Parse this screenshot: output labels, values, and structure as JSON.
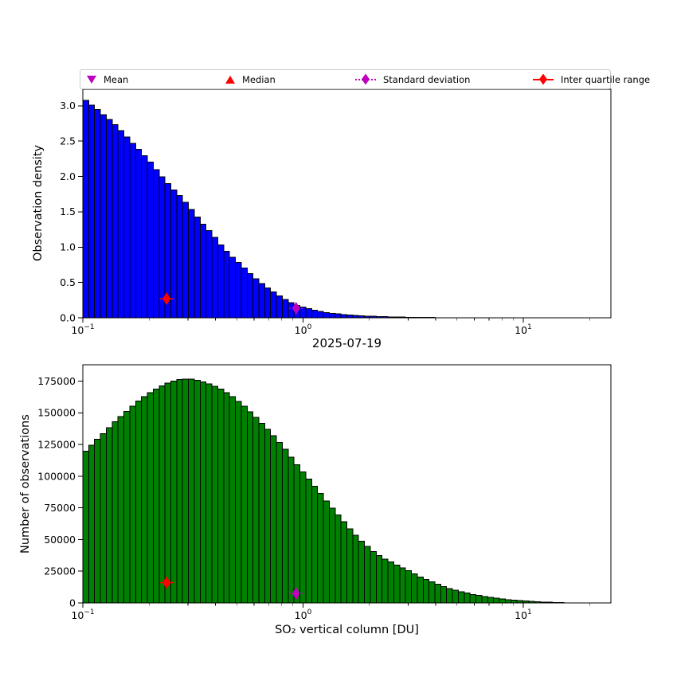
{
  "figure": {
    "background": "#ffffff",
    "date_title": "2025-07-19"
  },
  "legend": {
    "border_color": "#cccccc",
    "items": [
      {
        "label": "Mean",
        "marker": "triangle-down",
        "color": "#bf00bf"
      },
      {
        "label": "Median",
        "marker": "triangle-up",
        "color": "#ff0000"
      },
      {
        "label": "Standard deviation",
        "marker": "diamond-dotted-errorbar",
        "color": "#bf00bf"
      },
      {
        "label": "Inter quartile range",
        "marker": "diamond-solid-errorbar",
        "color": "#ff0000"
      }
    ]
  },
  "chart_data": [
    {
      "type": "bar",
      "name": "observation-density-histogram",
      "ylabel": "Observation density",
      "xlabel": "",
      "xscale": "log",
      "xlim": [
        0.1,
        25
      ],
      "ylim": [
        0,
        3.235
      ],
      "n_bins": 90,
      "grid": false,
      "bar_color": "#0000ff",
      "bar_edge_color": "#000000",
      "yticks": [
        {
          "v": 0.0,
          "label": "0.0"
        },
        {
          "v": 0.5,
          "label": "0.5"
        },
        {
          "v": 1.0,
          "label": "1.0"
        },
        {
          "v": 1.5,
          "label": "1.5"
        },
        {
          "v": 2.0,
          "label": "2.0"
        },
        {
          "v": 2.5,
          "label": "2.5"
        },
        {
          "v": 3.0,
          "label": "3.0"
        }
      ],
      "xticks": [
        {
          "v": 0.1,
          "mantissa": "10",
          "exponent": "−1"
        },
        {
          "v": 1,
          "mantissa": "10",
          "exponent": "0"
        },
        {
          "v": 10,
          "mantissa": "10",
          "exponent": "1"
        }
      ],
      "envelope": {
        "x": [
          0.1,
          0.113,
          0.127,
          0.142,
          0.158,
          0.176,
          0.198,
          0.221,
          0.246,
          0.277,
          0.308,
          0.344,
          0.386,
          0.431,
          0.481,
          0.542,
          0.6,
          0.67,
          0.754,
          0.837,
          0.928,
          1.04,
          1.17,
          1.3,
          1.5,
          1.75,
          2.0,
          2.5,
          3.0,
          3.5,
          4.5,
          6.0,
          10.0,
          25.0
        ],
        "y": [
          3.11,
          2.98,
          2.85,
          2.72,
          2.56,
          2.41,
          2.24,
          2.05,
          1.88,
          1.72,
          1.55,
          1.36,
          1.19,
          1.0,
          0.85,
          0.7,
          0.57,
          0.45,
          0.34,
          0.25,
          0.18,
          0.135,
          0.095,
          0.07,
          0.05,
          0.035,
          0.022,
          0.012,
          0.007,
          0.005,
          0.003,
          0.002,
          0.001,
          0.0005
        ]
      },
      "markers": [
        {
          "name": "inter-quartile-range",
          "x": 0.24,
          "x_lo": 0.223,
          "x_hi": 0.259,
          "y": 0.27,
          "color": "#ff0000",
          "style": "solid"
        },
        {
          "name": "standard-deviation",
          "x": 0.93,
          "x_lo": 0.865,
          "x_hi": 1.0,
          "y": 0.135,
          "color": "#bf00bf",
          "style": "dotted"
        }
      ]
    },
    {
      "type": "bar",
      "name": "number-of-observations-histogram",
      "ylabel": "Number of observations",
      "xlabel": "SO₂ vertical column [DU]",
      "xscale": "log",
      "xlim": [
        0.1,
        25
      ],
      "ylim": [
        0,
        188000
      ],
      "n_bins": 90,
      "grid": false,
      "bar_color": "#008000",
      "bar_edge_color": "#000000",
      "yticks": [
        {
          "v": 0,
          "label": "0"
        },
        {
          "v": 25000,
          "label": "25000"
        },
        {
          "v": 50000,
          "label": "50000"
        },
        {
          "v": 75000,
          "label": "75000"
        },
        {
          "v": 100000,
          "label": "100000"
        },
        {
          "v": 125000,
          "label": "125000"
        },
        {
          "v": 150000,
          "label": "150000"
        },
        {
          "v": 175000,
          "label": "175000"
        }
      ],
      "xticks": [
        {
          "v": 0.1,
          "mantissa": "10",
          "exponent": "−1"
        },
        {
          "v": 1,
          "mantissa": "10",
          "exponent": "0"
        },
        {
          "v": 10,
          "mantissa": "10",
          "exponent": "1"
        }
      ],
      "envelope": {
        "x": [
          0.1,
          0.113,
          0.127,
          0.142,
          0.158,
          0.176,
          0.198,
          0.221,
          0.246,
          0.277,
          0.308,
          0.344,
          0.386,
          0.431,
          0.481,
          0.542,
          0.6,
          0.67,
          0.754,
          0.837,
          0.928,
          1.04,
          1.17,
          1.3,
          1.47,
          1.63,
          1.82,
          2.05,
          2.3,
          2.7,
          3.0,
          3.5,
          4.0,
          4.5,
          5.0,
          5.8,
          6.6,
          7.4,
          8.5,
          9.4,
          10.5,
          12.0,
          13.5,
          15.0,
          17.0,
          20.0,
          25.0
        ],
        "y": [
          117500,
          127000,
          135500,
          144000,
          151000,
          158500,
          165000,
          170000,
          174000,
          176500,
          176800,
          175000,
          172000,
          168000,
          162500,
          155000,
          148000,
          139500,
          130000,
          120500,
          110000,
          99500,
          89000,
          78500,
          68000,
          58500,
          49500,
          41500,
          35500,
          29500,
          25500,
          19500,
          15500,
          12000,
          9800,
          7000,
          5300,
          3900,
          2700,
          1900,
          1300,
          800,
          450,
          250,
          120,
          60,
          20
        ]
      },
      "markers": [
        {
          "name": "inter-quartile-range",
          "x": 0.24,
          "x_lo": 0.223,
          "x_hi": 0.259,
          "y": 16000,
          "color": "#ff0000",
          "style": "solid"
        },
        {
          "name": "standard-deviation",
          "x": 0.93,
          "x_lo": 0.865,
          "x_hi": 1.0,
          "y": 7500,
          "color": "#bf00bf",
          "style": "dotted"
        }
      ]
    }
  ]
}
